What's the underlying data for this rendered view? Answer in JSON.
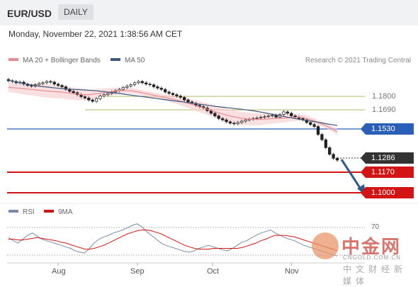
{
  "header": {
    "pair": "EUR/USD",
    "timeframe": "DAILY",
    "datetime": "Monday, November 22, 2021 1:38:56 AM CET"
  },
  "legend": {
    "ma20": "MA 20 + Bollinger Bands",
    "ma50": "MA 50",
    "credit": "Research © 2021 Trading Central",
    "rsi": "RSI",
    "ma9": "9MA"
  },
  "colors": {
    "ma20": "#e88c94",
    "ma50": "#3c5a7e",
    "blue_level": "#2a5fb8",
    "red_level": "#d21414",
    "olive_level": "#b5b866",
    "current": "#333333",
    "arrow": "#2e5a8e"
  },
  "levels": {
    "r2": "1.1800",
    "r1": "1.1690",
    "pivot": "1.1530",
    "current": "1.1286",
    "s1": "1.1170",
    "s2": "1.1000"
  },
  "rsi_panel": {
    "level_70": "70"
  },
  "watermark": {
    "cn_name": "中金网",
    "url": "CNGOLD.COM.CN",
    "tagline": "中文财经新媒体"
  },
  "chart_data": {
    "type": "candlestick",
    "x_labels": [
      "Aug",
      "Sep",
      "Oct",
      "Nov"
    ],
    "ylim": [
      1.097,
      1.196
    ],
    "grid": false,
    "candles_close": [
      1.1885,
      1.188,
      1.187,
      1.1875,
      1.186,
      1.185,
      1.1845,
      1.1855,
      1.1865,
      1.187,
      1.188,
      1.1875,
      1.186,
      1.185,
      1.184,
      1.182,
      1.1805,
      1.1795,
      1.178,
      1.1765,
      1.1755,
      1.174,
      1.173,
      1.175,
      1.177,
      1.178,
      1.179,
      1.18,
      1.181,
      1.182,
      1.1835,
      1.1845,
      1.1855,
      1.187,
      1.188,
      1.187,
      1.186,
      1.1855,
      1.184,
      1.183,
      1.182,
      1.18,
      1.179,
      1.178,
      1.177,
      1.176,
      1.174,
      1.1725,
      1.1715,
      1.17,
      1.169,
      1.168,
      1.166,
      1.164,
      1.162,
      1.16,
      1.159,
      1.1575,
      1.1565,
      1.156,
      1.157,
      1.158,
      1.159,
      1.1595,
      1.16,
      1.1605,
      1.161,
      1.1615,
      1.162,
      1.1625,
      1.161,
      1.163,
      1.165,
      1.164,
      1.162,
      1.161,
      1.16,
      1.159,
      1.157,
      1.1555,
      1.154,
      1.148,
      1.144,
      1.138,
      1.133,
      1.13,
      1.1286
    ],
    "ma20": [
      1.1835,
      1.1832,
      1.183,
      1.1826,
      1.1822,
      1.182,
      1.1815,
      1.1812,
      1.1808,
      1.1806,
      1.1802,
      1.18,
      1.1795,
      1.179,
      1.1786,
      1.1782,
      1.178,
      1.178,
      1.1785,
      1.179,
      1.1795,
      1.18,
      1.1805,
      1.1808,
      1.181,
      1.1812,
      1.1808,
      1.1802,
      1.1795,
      1.1788,
      1.178,
      1.1772,
      1.1765,
      1.1758,
      1.175,
      1.1742,
      1.1732,
      1.1722,
      1.1712,
      1.17,
      1.169,
      1.168,
      1.1668,
      1.1656,
      1.1644,
      1.1634,
      1.1624,
      1.1615,
      1.1608,
      1.1602,
      1.1598,
      1.1595,
      1.1594,
      1.1594,
      1.1596,
      1.1598,
      1.16,
      1.1602,
      1.1604,
      1.1606,
      1.1608,
      1.161,
      1.1605,
      1.1595,
      1.1585,
      1.157,
      1.1555,
      1.154,
      1.152,
      1.15
    ],
    "ma50": [
      1.189,
      1.188,
      1.187,
      1.186,
      1.1852,
      1.1845,
      1.184,
      1.1835,
      1.183,
      1.1826,
      1.1822,
      1.182,
      1.1818,
      1.1815,
      1.1812,
      1.1808,
      1.1803,
      1.1798,
      1.1792,
      1.1786,
      1.178,
      1.1774,
      1.1768,
      1.1762,
      1.1756,
      1.175,
      1.1744,
      1.1738,
      1.1732,
      1.1726,
      1.172,
      1.1714,
      1.1708,
      1.1702,
      1.1696,
      1.169,
      1.1685,
      1.168,
      1.1675,
      1.167,
      1.1664,
      1.1658,
      1.165,
      1.1642,
      1.1634,
      1.1625,
      1.1616,
      1.1608,
      1.16,
      1.1592,
      1.1585,
      1.1578,
      1.157,
      1.1562,
      1.1555,
      1.1548
    ],
    "rsi_ylim": [
      20,
      80
    ],
    "rsi_ref": 70,
    "rsi": [
      52,
      48,
      45,
      50,
      55,
      58,
      54,
      50,
      48,
      46,
      44,
      42,
      40,
      38,
      35,
      33,
      32,
      38,
      45,
      50,
      53,
      55,
      58,
      60,
      62,
      65,
      68,
      70,
      66,
      60,
      55,
      50,
      45,
      42,
      40,
      38,
      36,
      34,
      33,
      35,
      38,
      40,
      42,
      40,
      38,
      36,
      35,
      38,
      42,
      46,
      48,
      52,
      55,
      58,
      60,
      62,
      58,
      55,
      52,
      50,
      48,
      45,
      42,
      40,
      38,
      36,
      34,
      32,
      30,
      28
    ],
    "rsi_ma9": [
      50,
      50,
      49,
      49,
      50,
      51,
      52,
      51,
      50,
      49,
      48,
      46,
      45,
      43,
      41,
      39,
      37,
      37,
      38,
      40,
      42,
      45,
      48,
      51,
      54,
      57,
      59,
      61,
      62,
      62,
      61,
      59,
      57,
      54,
      51,
      48,
      45,
      42,
      40,
      38,
      37,
      37,
      37,
      38,
      38,
      38,
      38,
      38,
      38,
      39,
      41,
      43,
      45,
      48,
      50,
      53,
      55,
      55,
      55,
      54,
      53,
      51,
      49,
      47,
      45,
      43,
      41,
      39,
      37,
      35
    ]
  }
}
